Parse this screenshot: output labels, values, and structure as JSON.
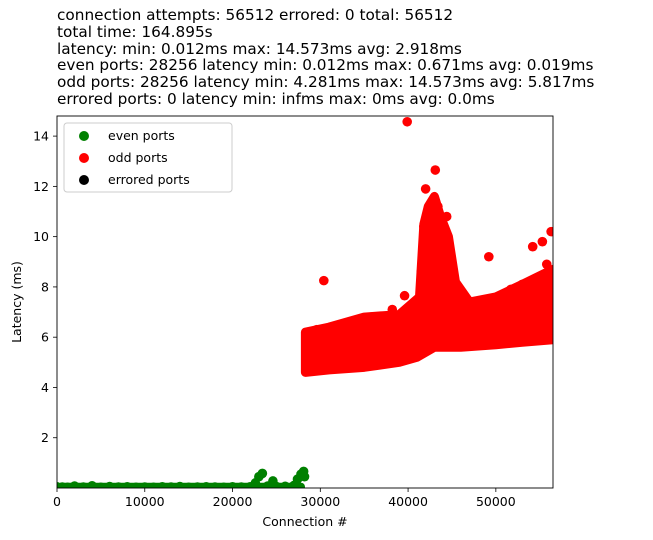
{
  "chart_data": {
    "type": "scatter",
    "title_lines": [
      "connection attempts: 56512 errored: 0 total: 56512",
      "total time: 164.895s",
      "latency: min: 0.012ms max: 14.573ms avg: 2.918ms",
      "even ports: 28256 latency min: 0.012ms max: 0.671ms avg: 0.019ms",
      "odd ports: 28256 latency min: 4.281ms max: 14.573ms avg: 5.817ms",
      "errored ports: 0 latency min: infms max: 0ms avg: 0.0ms"
    ],
    "xlabel": "Connection #",
    "ylabel": "Latency (ms)",
    "xlim": [
      0,
      56512
    ],
    "ylim": [
      0,
      14.8
    ],
    "xticks": [
      0,
      10000,
      20000,
      30000,
      40000,
      50000
    ],
    "xtick_labels": [
      "0",
      "10000",
      "20000",
      "30000",
      "40000",
      "50000"
    ],
    "yticks": [
      2,
      4,
      6,
      8,
      10,
      12,
      14
    ],
    "ytick_labels": [
      "2",
      "4",
      "6",
      "8",
      "10",
      "12",
      "14"
    ],
    "grid": false,
    "legend_position": "top-left",
    "series": [
      {
        "name": "even ports",
        "color": "#008000",
        "points": [
          [
            0,
            0.05
          ],
          [
            600,
            0.04
          ],
          [
            1200,
            0.03
          ],
          [
            2000,
            0.08
          ],
          [
            3000,
            0.04
          ],
          [
            4000,
            0.09
          ],
          [
            5000,
            0.03
          ],
          [
            6000,
            0.06
          ],
          [
            7000,
            0.04
          ],
          [
            8000,
            0.05
          ],
          [
            9000,
            0.03
          ],
          [
            10000,
            0.04
          ],
          [
            11000,
            0.03
          ],
          [
            12000,
            0.05
          ],
          [
            13000,
            0.04
          ],
          [
            14000,
            0.06
          ],
          [
            15000,
            0.03
          ],
          [
            16000,
            0.04
          ],
          [
            17000,
            0.05
          ],
          [
            18000,
            0.04
          ],
          [
            19000,
            0.03
          ],
          [
            20000,
            0.05
          ],
          [
            21000,
            0.04
          ],
          [
            22000,
            0.05
          ],
          [
            22600,
            0.2
          ],
          [
            23000,
            0.45
          ],
          [
            23400,
            0.58
          ],
          [
            24000,
            0.08
          ],
          [
            24600,
            0.28
          ],
          [
            25000,
            0.06
          ],
          [
            26000,
            0.07
          ],
          [
            27000,
            0.1
          ],
          [
            27400,
            0.35
          ],
          [
            27800,
            0.55
          ],
          [
            28100,
            0.66
          ],
          [
            28200,
            0.45
          ]
        ]
      },
      {
        "name": "odd ports",
        "color": "#ff0000",
        "points": [
          [
            28400,
            4.85
          ],
          [
            28600,
            5.6
          ],
          [
            28900,
            6.1
          ],
          [
            29200,
            5.0
          ],
          [
            29600,
            6.3
          ],
          [
            30000,
            5.5
          ],
          [
            30400,
            8.25
          ],
          [
            30800,
            5.8
          ],
          [
            31200,
            5.2
          ],
          [
            31600,
            6.4
          ],
          [
            32000,
            5.7
          ],
          [
            32500,
            6.0
          ],
          [
            33000,
            5.3
          ],
          [
            33500,
            6.6
          ],
          [
            34000,
            5.6
          ],
          [
            34600,
            6.1
          ],
          [
            35200,
            5.4
          ],
          [
            35800,
            6.8
          ],
          [
            36400,
            5.9
          ],
          [
            37000,
            6.3
          ],
          [
            37600,
            5.5
          ],
          [
            38200,
            7.1
          ],
          [
            38800,
            6.0
          ],
          [
            39400,
            6.5
          ],
          [
            39600,
            7.65
          ],
          [
            39900,
            14.57
          ],
          [
            40200,
            6.2
          ],
          [
            40800,
            6.9
          ],
          [
            41200,
            7.4
          ],
          [
            41500,
            8.6
          ],
          [
            41800,
            10.4
          ],
          [
            42000,
            11.9
          ],
          [
            42200,
            10.9
          ],
          [
            42500,
            9.6
          ],
          [
            42800,
            10.6
          ],
          [
            43100,
            12.65
          ],
          [
            43400,
            11.2
          ],
          [
            43700,
            10.2
          ],
          [
            44000,
            9.4
          ],
          [
            44400,
            10.8
          ],
          [
            44800,
            9.0
          ],
          [
            45200,
            7.9
          ],
          [
            45700,
            7.0
          ],
          [
            46200,
            7.6
          ],
          [
            46800,
            6.6
          ],
          [
            47400,
            7.2
          ],
          [
            48000,
            6.9
          ],
          [
            48600,
            7.4
          ],
          [
            49200,
            9.2
          ],
          [
            49800,
            6.8
          ],
          [
            50400,
            7.5
          ],
          [
            51000,
            6.9
          ],
          [
            51700,
            7.9
          ],
          [
            52400,
            7.2
          ],
          [
            53000,
            8.1
          ],
          [
            53700,
            7.3
          ],
          [
            54200,
            9.6
          ],
          [
            54800,
            7.6
          ],
          [
            55300,
            9.8
          ],
          [
            55800,
            8.9
          ],
          [
            56300,
            10.2
          ],
          [
            56500,
            6.5
          ]
        ]
      },
      {
        "name": "errored ports",
        "color": "#000000",
        "points": []
      }
    ]
  }
}
